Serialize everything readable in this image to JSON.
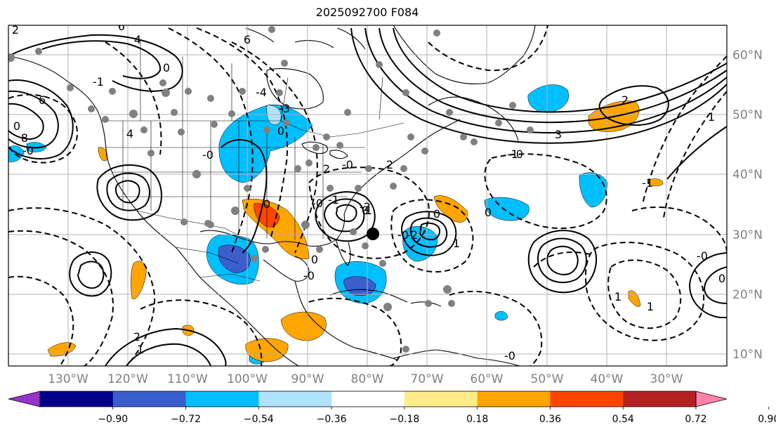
{
  "title": "2025092700 F084",
  "longitude_labels": [
    "130°W",
    "120°W",
    "110°W",
    "100°W",
    "90°W",
    "80°W",
    "70°W",
    "60°W",
    "50°W",
    "40°W",
    "30°W"
  ],
  "latitude_labels": [
    "60°N",
    "50°N",
    "40°N",
    "30°N",
    "20°N",
    "10°N"
  ],
  "colorbar": {
    "ticks": [
      "−0.90",
      "−0.72",
      "−0.54",
      "−0.36",
      "−0.18",
      "0.18",
      "0.36",
      "0.54",
      "0.72",
      "0.90"
    ],
    "colors": [
      "#9932cc",
      "#00008b",
      "#3a5fcd",
      "#00bfff",
      "#b0e2ff",
      "#ffffff",
      "#ffec8b",
      "#ffa500",
      "#ff4500",
      "#b22222",
      "#ff82ab"
    ]
  },
  "contour_labels": [
    "2",
    "6",
    "4",
    "0",
    "6",
    "-4",
    "0",
    "-1",
    "6",
    "-0",
    "0",
    "8",
    "4",
    "0",
    "-3",
    "-0",
    "2",
    "-1",
    "-0",
    "0",
    "1",
    "0",
    "-0",
    "3",
    "-1",
    "-0",
    "0",
    "-0",
    "-2",
    "0",
    "1",
    "-2",
    "-0",
    "2",
    "-1",
    "1",
    "1",
    "-0",
    "0",
    "1",
    "-0",
    "2",
    "1",
    "2"
  ],
  "colors": {
    "axis_label": "#808080",
    "grid": "#b0b0b0"
  }
}
